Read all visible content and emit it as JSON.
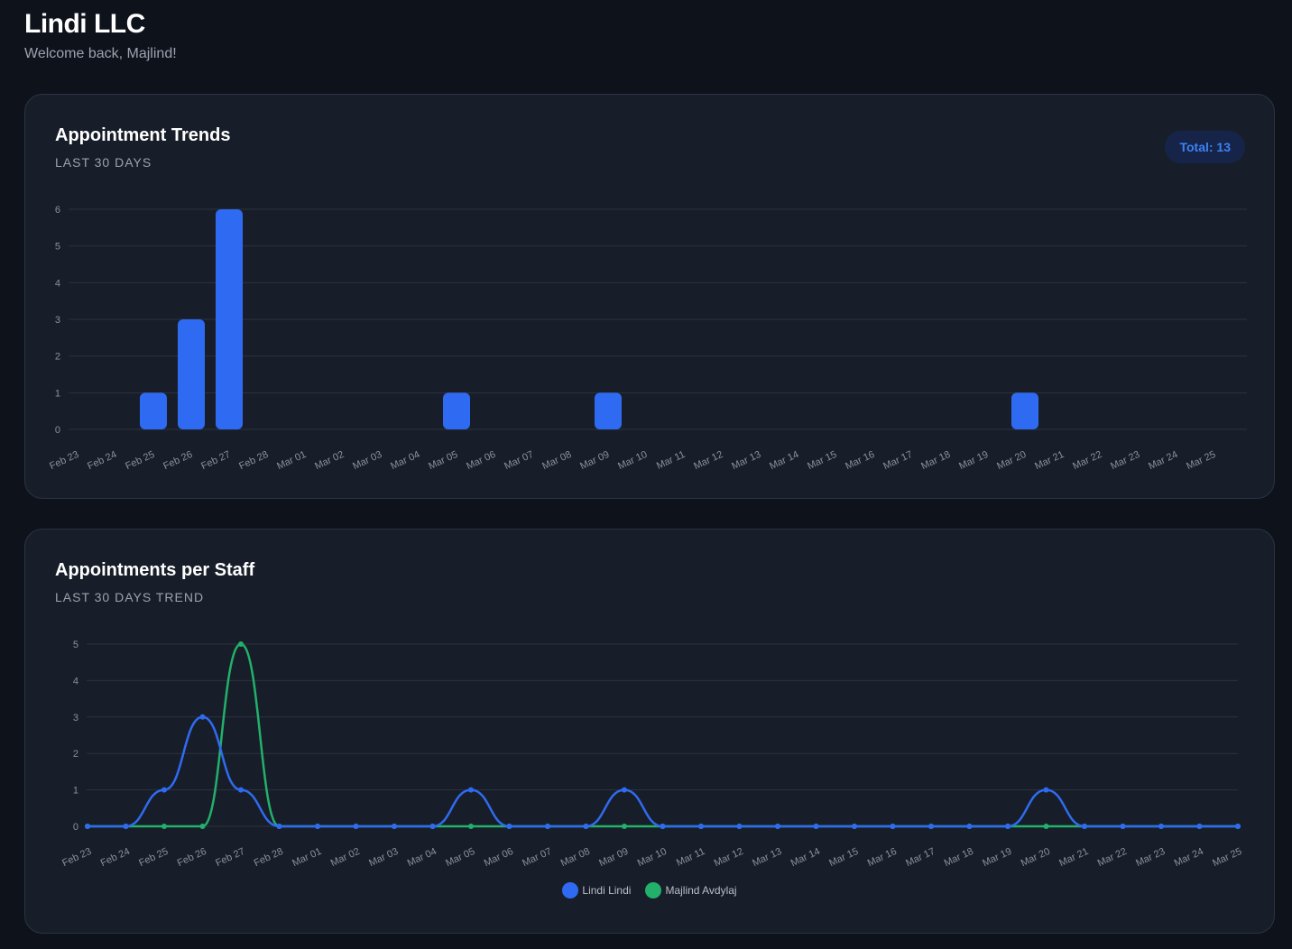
{
  "header": {
    "title": "Lindi LLC",
    "subtitle": "Welcome back, Majlind!"
  },
  "colors": {
    "primary": "#2f6bf2",
    "secondary": "#22b06a",
    "grid": "#2a3140",
    "tick": "#8b919b"
  },
  "trends": {
    "title": "Appointment Trends",
    "subtitle": "LAST 30 DAYS",
    "badge": "Total: 13"
  },
  "staff": {
    "title": "Appointments per Staff",
    "subtitle": "LAST 30 DAYS TREND"
  },
  "chart_data": [
    {
      "type": "bar",
      "categories": [
        "Feb 23",
        "Feb 24",
        "Feb 25",
        "Feb 26",
        "Feb 27",
        "Feb 28",
        "Mar 01",
        "Mar 02",
        "Mar 03",
        "Mar 04",
        "Mar 05",
        "Mar 06",
        "Mar 07",
        "Mar 08",
        "Mar 09",
        "Mar 10",
        "Mar 11",
        "Mar 12",
        "Mar 13",
        "Mar 14",
        "Mar 15",
        "Mar 16",
        "Mar 17",
        "Mar 18",
        "Mar 19",
        "Mar 20",
        "Mar 21",
        "Mar 22",
        "Mar 23",
        "Mar 24",
        "Mar 25"
      ],
      "values": [
        0,
        0,
        1,
        3,
        6,
        0,
        0,
        0,
        0,
        0,
        1,
        0,
        0,
        0,
        1,
        0,
        0,
        0,
        0,
        0,
        0,
        0,
        0,
        0,
        0,
        1,
        0,
        0,
        0,
        0,
        0
      ],
      "yticks": [
        0,
        1,
        2,
        3,
        4,
        5,
        6
      ],
      "ylim": [
        0,
        6
      ],
      "grid": true
    },
    {
      "type": "line",
      "categories": [
        "Feb 23",
        "Feb 24",
        "Feb 25",
        "Feb 26",
        "Feb 27",
        "Feb 28",
        "Mar 01",
        "Mar 02",
        "Mar 03",
        "Mar 04",
        "Mar 05",
        "Mar 06",
        "Mar 07",
        "Mar 08",
        "Mar 09",
        "Mar 10",
        "Mar 11",
        "Mar 12",
        "Mar 13",
        "Mar 14",
        "Mar 15",
        "Mar 16",
        "Mar 17",
        "Mar 18",
        "Mar 19",
        "Mar 20",
        "Mar 21",
        "Mar 22",
        "Mar 23",
        "Mar 24",
        "Mar 25"
      ],
      "series": [
        {
          "name": "Lindi Lindi",
          "color": "#2f6bf2",
          "values": [
            0,
            0,
            1,
            3,
            1,
            0,
            0,
            0,
            0,
            0,
            1,
            0,
            0,
            0,
            1,
            0,
            0,
            0,
            0,
            0,
            0,
            0,
            0,
            0,
            0,
            1,
            0,
            0,
            0,
            0,
            0
          ]
        },
        {
          "name": "Majlind Avdylaj",
          "color": "#22b06a",
          "values": [
            0,
            0,
            0,
            0,
            5,
            0,
            0,
            0,
            0,
            0,
            0,
            0,
            0,
            0,
            0,
            0,
            0,
            0,
            0,
            0,
            0,
            0,
            0,
            0,
            0,
            0,
            0,
            0,
            0,
            0,
            0
          ]
        }
      ],
      "yticks": [
        0,
        1,
        2,
        3,
        4,
        5
      ],
      "ylim": [
        0,
        5
      ],
      "grid": true,
      "legend": "bottom-center"
    }
  ]
}
